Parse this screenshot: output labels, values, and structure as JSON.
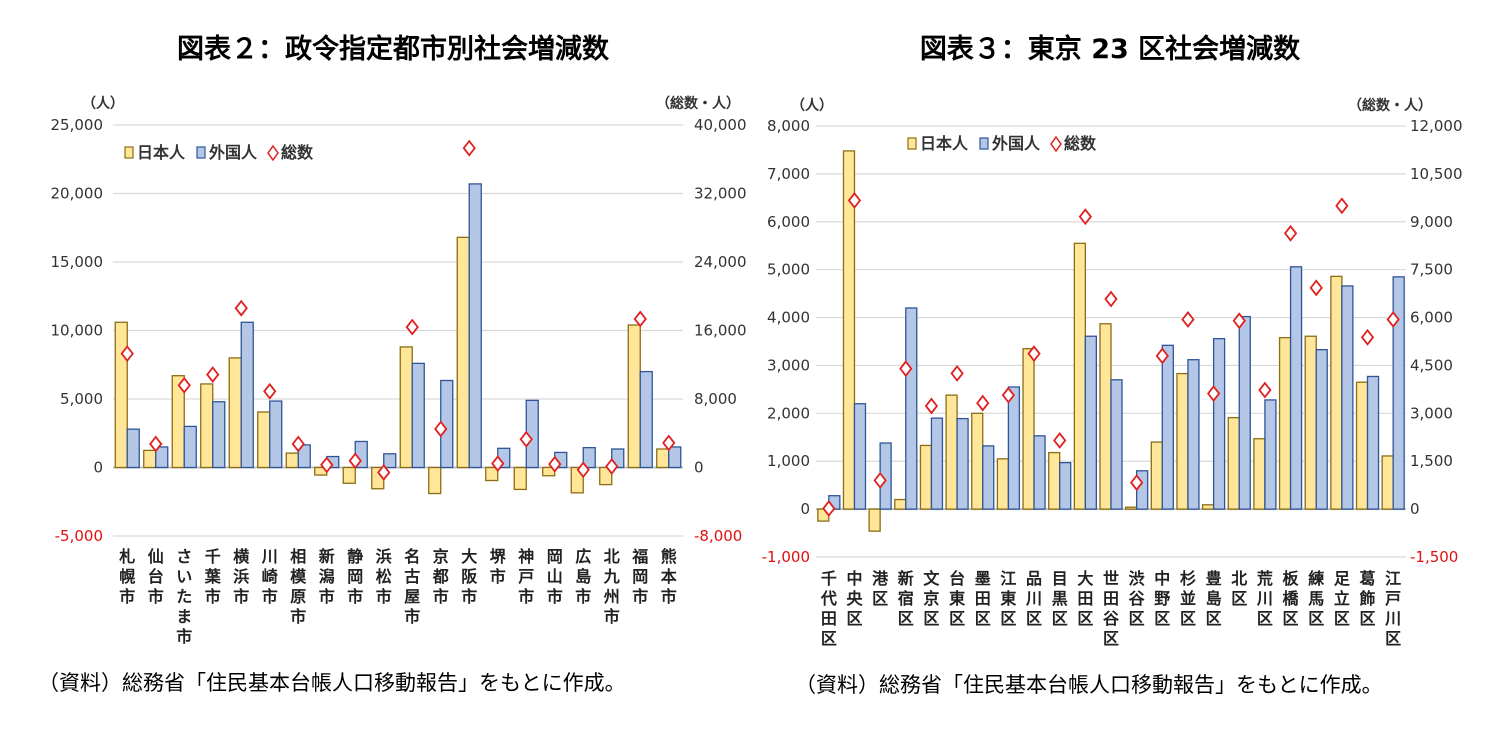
{
  "colors": {
    "japanese_fill": "#FFE699",
    "japanese_border": "#8C6D12",
    "foreign_fill": "#B4C7E7",
    "foreign_border": "#2F5597",
    "total_marker": "#E02020",
    "negative_tick": "#E01010",
    "grid": "#D9D9D9"
  },
  "chart_data": [
    {
      "type": "bar",
      "title": "図表２：政令指定都市別社会増減数",
      "ylabel": "（人）",
      "y2label": "（総数・人）",
      "ylim": [
        -5000,
        25000
      ],
      "y2lim": [
        -8000,
        40000
      ],
      "yticks": [
        "25,000",
        "20,000",
        "15,000",
        "10,000",
        "5,000",
        "0",
        "-5,000"
      ],
      "y2ticks": [
        "40,000",
        "32,000",
        "24,000",
        "16,000",
        "8,000",
        "0",
        "-8,000"
      ],
      "grid": true,
      "legend_position": "top-left",
      "legend": [
        "日本人",
        "外国人",
        "総数"
      ],
      "categories": [
        "札幌市",
        "仙台市",
        "さいたま市",
        "千葉市",
        "横浜市",
        "川崎市",
        "相模原市",
        "新潟市",
        "静岡市",
        "浜松市",
        "名古屋市",
        "京都市",
        "大阪市",
        "堺市",
        "神戸市",
        "岡山市",
        "広島市",
        "北九州市",
        "福岡市",
        "熊本市"
      ],
      "series": [
        {
          "name": "日本人",
          "axis": "left",
          "kind": "bar",
          "values": [
            10600,
            1250,
            6700,
            6100,
            8000,
            4050,
            1050,
            -550,
            -1150,
            -1550,
            8800,
            -1900,
            16800,
            -950,
            -1600,
            -600,
            -1850,
            -1250,
            10400,
            1350
          ]
        },
        {
          "name": "外国人",
          "axis": "left",
          "kind": "bar",
          "values": [
            2800,
            1500,
            3000,
            4800,
            10600,
            4850,
            1650,
            800,
            1900,
            1000,
            7600,
            6350,
            20700,
            1400,
            4900,
            1100,
            1450,
            1350,
            7000,
            1500
          ]
        },
        {
          "name": "総数",
          "axis": "right",
          "kind": "marker",
          "values": [
            13300,
            2750,
            9600,
            10850,
            18600,
            8900,
            2750,
            300,
            780,
            -580,
            16400,
            4500,
            37300,
            460,
            3300,
            390,
            -270,
            120,
            17350,
            2870
          ]
        }
      ],
      "source": "（資料）総務省「住民基本台帳人口移動報告」をもとに作成。"
    },
    {
      "type": "bar",
      "title": "図表３：東京 23 区社会増減数",
      "ylabel": "（人）",
      "y2label": "（総数・人）",
      "ylim": [
        -1000,
        8000
      ],
      "y2lim": [
        -1500,
        12000
      ],
      "yticks": [
        "8,000",
        "7,000",
        "6,000",
        "5,000",
        "4,000",
        "3,000",
        "2,000",
        "1,000",
        "0",
        "-1,000"
      ],
      "y2ticks": [
        "12,000",
        "10,500",
        "9,000",
        "7,500",
        "6,000",
        "4,500",
        "3,000",
        "1,500",
        "0",
        "-1,500"
      ],
      "grid": true,
      "legend_position": "top-left",
      "legend": [
        "日本人",
        "外国人",
        "総数"
      ],
      "categories": [
        "千代田区",
        "中央区",
        "港区",
        "新宿区",
        "文京区",
        "台東区",
        "墨田区",
        "江東区",
        "品川区",
        "目黒区",
        "大田区",
        "世田谷区",
        "渋谷区",
        "中野区",
        "杉並区",
        "豊島区",
        "北区",
        "荒川区",
        "板橋区",
        "練馬区",
        "足立区",
        "葛飾区",
        "江戸川区"
      ],
      "series": [
        {
          "name": "日本人",
          "axis": "left",
          "kind": "bar",
          "values": [
            -250,
            7480,
            -460,
            200,
            1330,
            2380,
            2000,
            1050,
            3350,
            1180,
            5550,
            3870,
            40,
            1400,
            2830,
            90,
            1910,
            1470,
            3580,
            3610,
            4860,
            2650,
            1110
          ]
        },
        {
          "name": "外国人",
          "axis": "left",
          "kind": "bar",
          "values": [
            280,
            2200,
            1380,
            4200,
            1900,
            1890,
            1320,
            2550,
            1530,
            970,
            3610,
            2700,
            800,
            3420,
            3120,
            3560,
            4020,
            2280,
            5060,
            3330,
            4660,
            2770,
            4850
          ]
        },
        {
          "name": "総数",
          "axis": "right",
          "kind": "marker",
          "values": [
            20,
            9670,
            900,
            4400,
            3230,
            4250,
            3320,
            3570,
            4870,
            2150,
            9160,
            6580,
            830,
            4800,
            5940,
            3620,
            5900,
            3730,
            8640,
            6930,
            9500,
            5380,
            5940
          ]
        }
      ],
      "source": "（資料）総務省「住民基本台帳人口移動報告」をもとに作成。"
    }
  ]
}
